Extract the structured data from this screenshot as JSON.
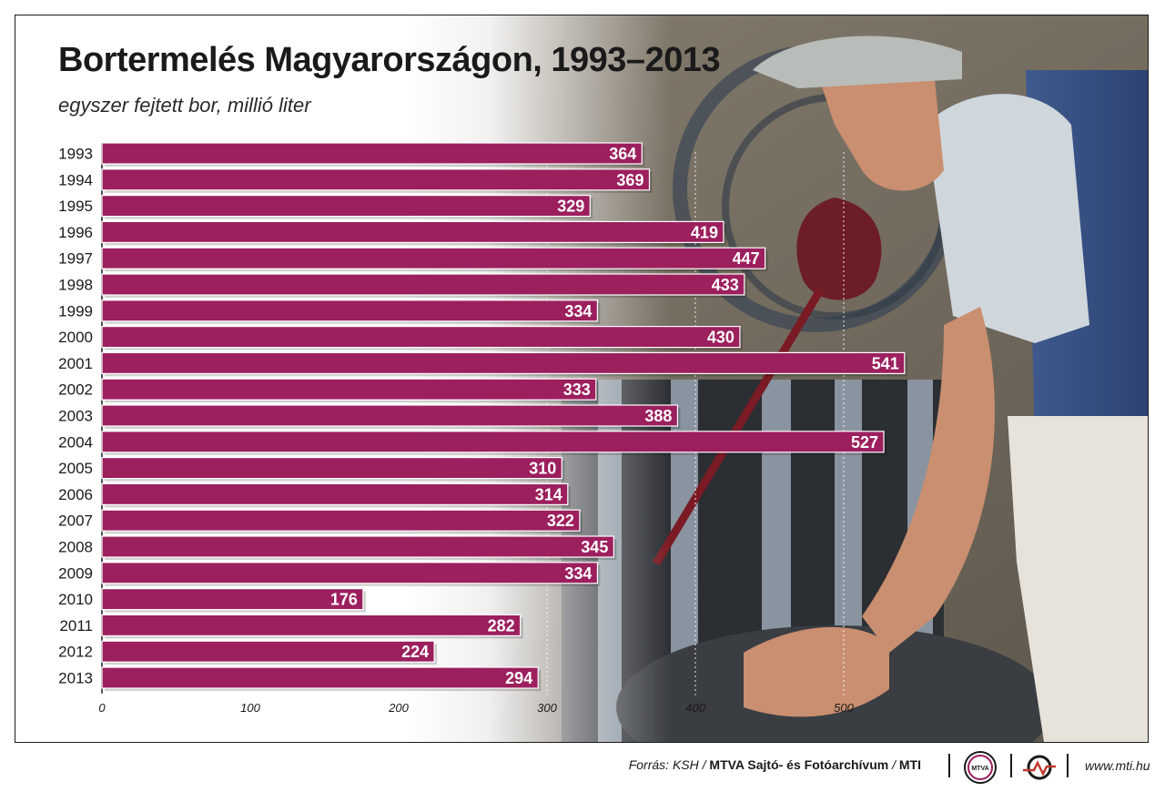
{
  "header": {
    "title": "Bortermelés Magyarországon, 1993–2013",
    "subtitle": "egyszer fejtett bor, millió liter"
  },
  "chart_data": {
    "type": "bar",
    "orientation": "horizontal",
    "title": "Bortermelés Magyarországon, 1993–2013",
    "subtitle": "egyszer fejtett bor, millió liter",
    "unit": "millió liter",
    "categories": [
      "1993",
      "1994",
      "1995",
      "1996",
      "1997",
      "1998",
      "1999",
      "2000",
      "2001",
      "2002",
      "2003",
      "2004",
      "2005",
      "2006",
      "2007",
      "2008",
      "2009",
      "2010",
      "2011",
      "2012",
      "2013"
    ],
    "values": [
      364,
      369,
      329,
      419,
      447,
      433,
      334,
      430,
      541,
      333,
      388,
      527,
      310,
      314,
      322,
      345,
      334,
      176,
      282,
      224,
      294
    ],
    "xlim": [
      0,
      541
    ],
    "xticks": [
      0,
      100,
      200,
      300,
      400,
      500
    ],
    "grid": "vertical dashed",
    "bar_color": "#9c1f5e",
    "label_color": "#ffffff",
    "legend": "none"
  },
  "footer": {
    "source_prefix": "Forrás: KSH / ",
    "source_org": "MTVA Sajtó- és Fotóarchívum",
    "source_sep": " / ",
    "source_agency": "MTI",
    "mtva_logo_text": "MTVA",
    "website": "www.mti.hu"
  }
}
